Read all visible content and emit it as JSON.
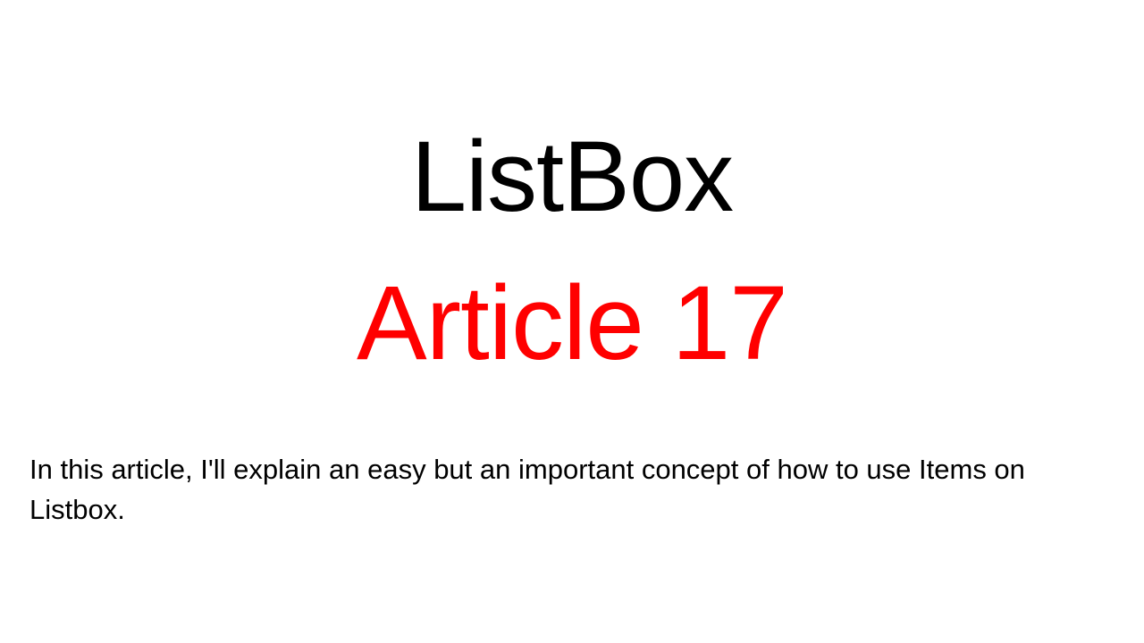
{
  "slide": {
    "title": "ListBox",
    "subtitle": "Article 17",
    "subtitle_color": "#ff0000",
    "body": "In this article, I'll explain an easy but an important concept of how to use Items on Listbox."
  }
}
